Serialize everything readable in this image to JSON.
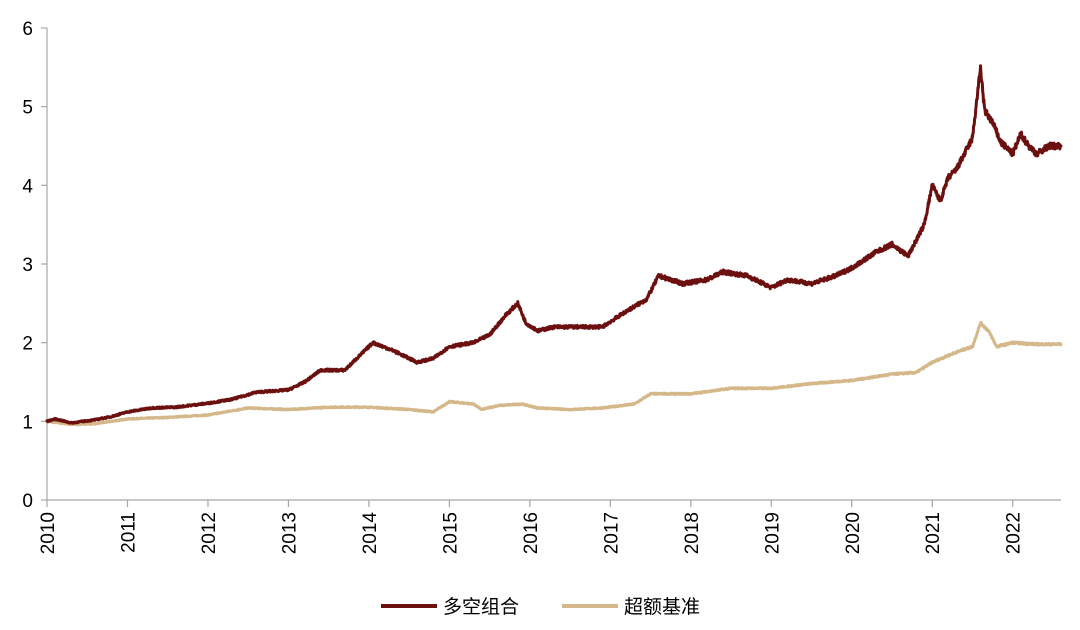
{
  "chart_data": {
    "type": "line",
    "title": "",
    "xlabel": "",
    "ylabel": "",
    "x_ticks": [
      "2010",
      "2011",
      "2012",
      "2013",
      "2014",
      "2015",
      "2016",
      "2017",
      "2018",
      "2019",
      "2020",
      "2021",
      "2022"
    ],
    "y_ticks": [
      "0",
      "1",
      "2",
      "3",
      "4",
      "5",
      "6"
    ],
    "xlim": [
      2010.0,
      2022.6
    ],
    "ylim": [
      0,
      6
    ],
    "grid": false,
    "legend_position": "bottom-center",
    "series": [
      {
        "name": "多空组合",
        "color": "#6b0f0f",
        "x": [
          2010.0,
          2010.1,
          2010.3,
          2010.6,
          2010.8,
          2011.0,
          2011.3,
          2011.6,
          2012.0,
          2012.3,
          2012.6,
          2013.0,
          2013.2,
          2013.4,
          2013.7,
          2014.0,
          2014.05,
          2014.3,
          2014.6,
          2014.8,
          2015.0,
          2015.3,
          2015.5,
          2015.7,
          2015.85,
          2015.95,
          2016.1,
          2016.3,
          2016.6,
          2016.9,
          2017.2,
          2017.45,
          2017.6,
          2017.9,
          2018.2,
          2018.4,
          2018.7,
          2018.9,
          2019.0,
          2019.2,
          2019.5,
          2019.8,
          2020.0,
          2020.3,
          2020.5,
          2020.7,
          2020.9,
          2021.0,
          2021.1,
          2021.2,
          2021.3,
          2021.5,
          2021.6,
          2021.65,
          2021.75,
          2021.85,
          2022.0,
          2022.1,
          2022.2,
          2022.3,
          2022.45,
          2022.6
        ],
        "values": [
          1.0,
          1.03,
          0.98,
          1.02,
          1.06,
          1.12,
          1.17,
          1.18,
          1.23,
          1.28,
          1.37,
          1.4,
          1.5,
          1.65,
          1.65,
          1.95,
          2.0,
          1.9,
          1.75,
          1.8,
          1.95,
          2.0,
          2.1,
          2.35,
          2.5,
          2.25,
          2.15,
          2.2,
          2.2,
          2.2,
          2.4,
          2.55,
          2.85,
          2.75,
          2.8,
          2.9,
          2.85,
          2.75,
          2.7,
          2.8,
          2.75,
          2.85,
          2.95,
          3.15,
          3.25,
          3.1,
          3.5,
          4.0,
          3.8,
          4.1,
          4.2,
          4.6,
          5.5,
          4.95,
          4.8,
          4.55,
          4.4,
          4.65,
          4.5,
          4.4,
          4.5,
          4.5
        ]
      },
      {
        "name": "超额基准",
        "color": "#d4b88a",
        "x": [
          2010.0,
          2010.3,
          2010.6,
          2011.0,
          2011.5,
          2012.0,
          2012.5,
          2013.0,
          2013.5,
          2014.0,
          2014.5,
          2014.8,
          2015.0,
          2015.3,
          2015.4,
          2015.6,
          2015.9,
          2016.1,
          2016.5,
          2016.9,
          2017.3,
          2017.5,
          2018.0,
          2018.5,
          2019.0,
          2019.5,
          2020.0,
          2020.5,
          2020.8,
          2021.0,
          2021.3,
          2021.5,
          2021.6,
          2021.7,
          2021.8,
          2022.0,
          2022.3,
          2022.6
        ],
        "values": [
          1.0,
          0.96,
          0.97,
          1.03,
          1.05,
          1.08,
          1.17,
          1.15,
          1.18,
          1.18,
          1.15,
          1.12,
          1.25,
          1.22,
          1.15,
          1.2,
          1.22,
          1.17,
          1.15,
          1.17,
          1.22,
          1.35,
          1.35,
          1.42,
          1.42,
          1.48,
          1.52,
          1.6,
          1.62,
          1.75,
          1.88,
          1.95,
          2.25,
          2.15,
          1.95,
          2.0,
          1.98,
          1.98
        ]
      }
    ]
  }
}
